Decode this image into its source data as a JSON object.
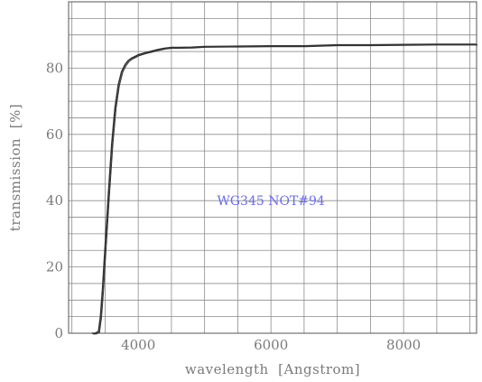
{
  "chart_data": {
    "type": "line",
    "title": "",
    "xlabel": "wavelength  [Angstrom]",
    "ylabel": "transmission  [%]",
    "xlim": [
      2950,
      9100
    ],
    "ylim": [
      0,
      100
    ],
    "x_ticks": [
      4000,
      6000,
      8000
    ],
    "y_ticks": [
      0,
      20,
      40,
      60,
      80
    ],
    "x_minor_step": 500,
    "y_minor_step": 5,
    "grid": true,
    "annotation": "WG345  NOT#94",
    "annotation_position_data": [
      6000,
      40
    ],
    "series": [
      {
        "line_color": "#333333",
        "x": [
          3300,
          3350,
          3400,
          3430,
          3460,
          3500,
          3550,
          3600,
          3650,
          3700,
          3750,
          3800,
          3850,
          3900,
          3950,
          4000,
          4100,
          4200,
          4300,
          4400,
          4500,
          4600,
          4800,
          5000,
          5500,
          6000,
          6500,
          7000,
          7500,
          8000,
          8500,
          9000,
          9100
        ],
        "values": [
          0,
          0,
          0.5,
          5,
          13,
          26,
          42,
          57,
          68,
          75,
          79,
          81,
          82.3,
          83,
          83.5,
          84,
          84.6,
          85.1,
          85.6,
          86,
          86.2,
          86.2,
          86.3,
          86.5,
          86.6,
          86.7,
          86.7,
          87,
          87,
          87.1,
          87.2,
          87.2,
          87.2
        ]
      }
    ]
  }
}
